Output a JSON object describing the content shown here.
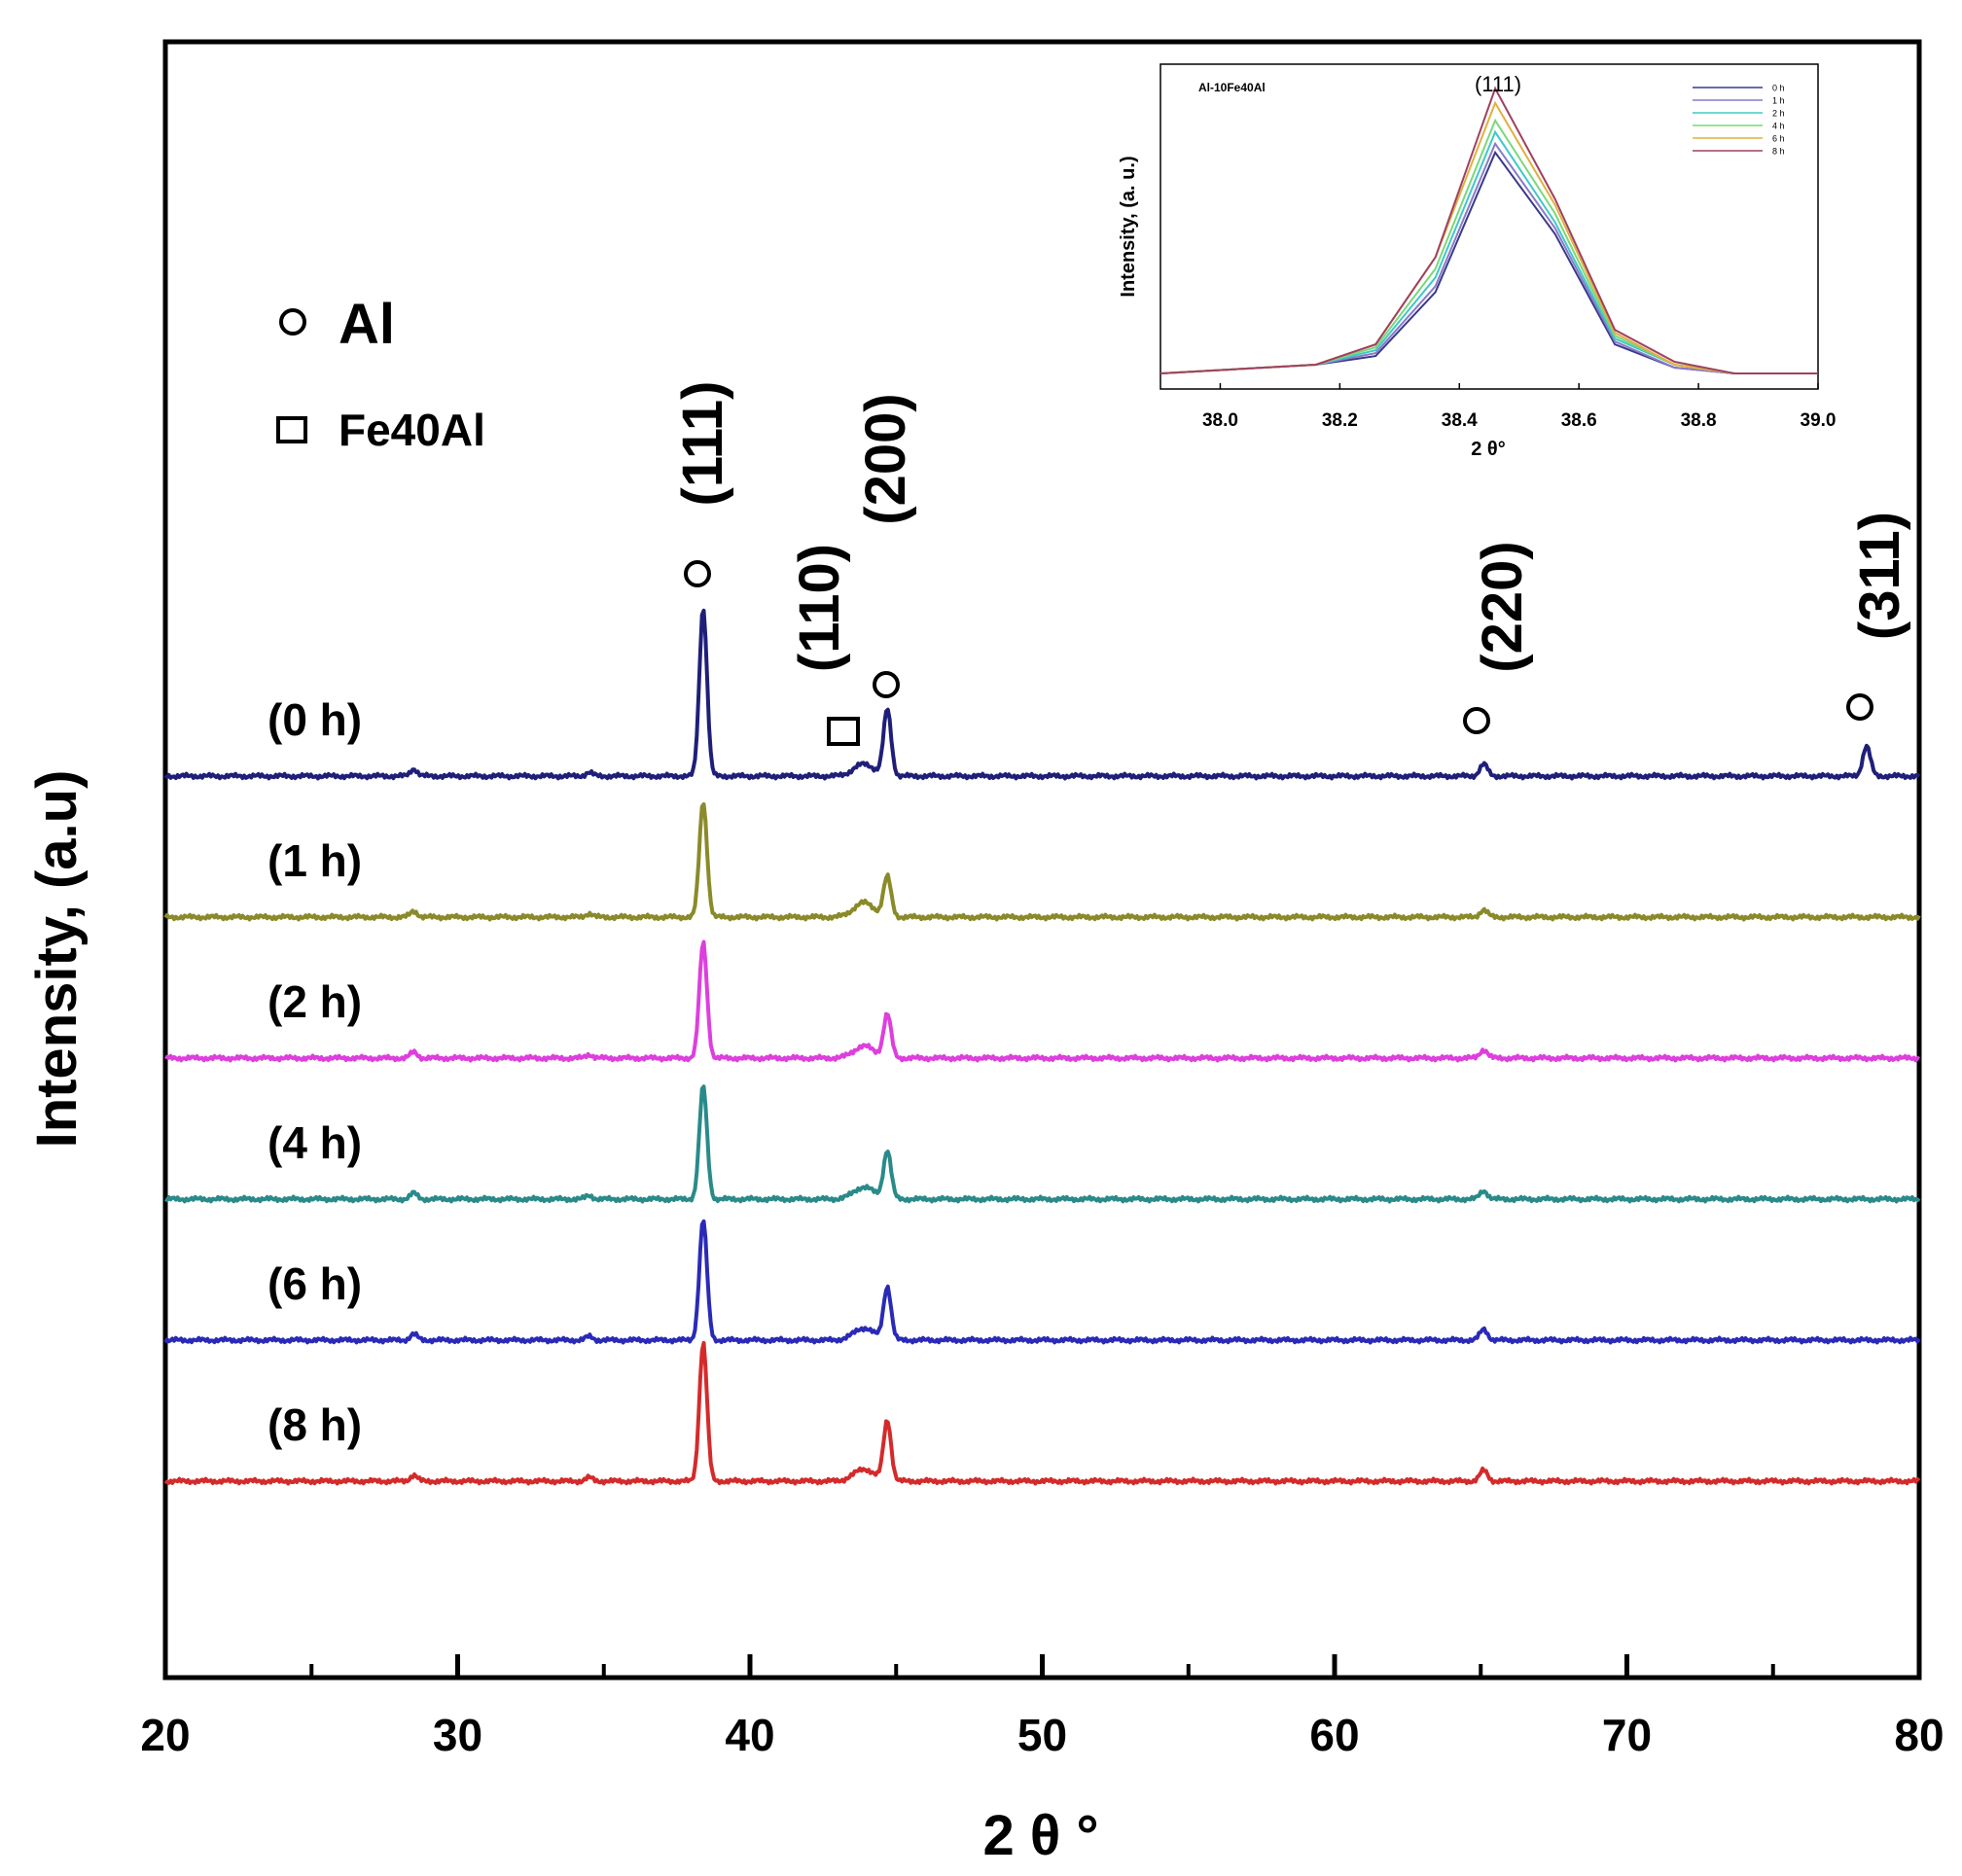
{
  "chart_data": [
    {
      "type": "line",
      "title": "",
      "xlabel": "2 θ °",
      "ylabel": "Intensity, (a.u)",
      "xlim": [
        20,
        80
      ],
      "x_ticks": [
        20,
        30,
        40,
        50,
        60,
        70,
        80
      ],
      "x_minor_ticks": [
        25,
        35,
        45,
        55,
        65,
        75
      ],
      "y_ticks": [],
      "legend": [
        {
          "marker": "circle",
          "label": "Al"
        },
        {
          "marker": "square",
          "label": "Fe40Al"
        }
      ],
      "peak_labels": [
        {
          "label": "(111)",
          "phase": "Al",
          "x": 38.4
        },
        {
          "label": "(110)",
          "phase": "Fe40Al",
          "x": 43.5
        },
        {
          "label": "(200)",
          "phase": "Al",
          "x": 44.7
        },
        {
          "label": "(220)",
          "phase": "Al",
          "x": 65.1
        },
        {
          "label": "(311)",
          "phase": "Al",
          "x": 78.2
        }
      ],
      "series": [
        {
          "name": "(0 h)",
          "color": "#1f1f7a",
          "offset": 0,
          "peaks": [
            {
              "x": 28.5,
              "h": 0.6
            },
            {
              "x": 34.5,
              "h": 0.3
            },
            {
              "x": 38.4,
              "h": 14.0
            },
            {
              "x": 43.9,
              "h": 1.0
            },
            {
              "x": 44.7,
              "h": 5.5
            },
            {
              "x": 65.1,
              "h": 1.0
            },
            {
              "x": 78.2,
              "h": 2.5
            }
          ]
        },
        {
          "name": "(1 h)",
          "color": "#8a8a2a",
          "offset": 1,
          "peaks": [
            {
              "x": 28.5,
              "h": 0.5
            },
            {
              "x": 34.5,
              "h": 0.3
            },
            {
              "x": 38.4,
              "h": 9.6
            },
            {
              "x": 43.9,
              "h": 1.2
            },
            {
              "x": 44.7,
              "h": 3.3
            },
            {
              "x": 65.1,
              "h": 0.6
            },
            {
              "x": 78.2,
              "h": 0.0
            }
          ]
        },
        {
          "name": "(2 h)",
          "color": "#dd3fdd",
          "offset": 2,
          "peaks": [
            {
              "x": 28.5,
              "h": 0.5
            },
            {
              "x": 34.5,
              "h": 0.3
            },
            {
              "x": 38.4,
              "h": 9.6
            },
            {
              "x": 43.9,
              "h": 1.0
            },
            {
              "x": 44.7,
              "h": 3.6
            },
            {
              "x": 65.1,
              "h": 0.7
            },
            {
              "x": 78.2,
              "h": 0.0
            }
          ]
        },
        {
          "name": "(4 h)",
          "color": "#2a8a8a",
          "offset": 3,
          "peaks": [
            {
              "x": 28.5,
              "h": 0.5
            },
            {
              "x": 34.5,
              "h": 0.3
            },
            {
              "x": 38.4,
              "h": 9.4
            },
            {
              "x": 43.9,
              "h": 1.0
            },
            {
              "x": 44.7,
              "h": 4.0
            },
            {
              "x": 65.1,
              "h": 0.7
            },
            {
              "x": 78.2,
              "h": 0.0
            }
          ]
        },
        {
          "name": "(6 h)",
          "color": "#2a2ab8",
          "offset": 4,
          "peaks": [
            {
              "x": 28.5,
              "h": 0.5
            },
            {
              "x": 34.5,
              "h": 0.3
            },
            {
              "x": 38.4,
              "h": 10.0
            },
            {
              "x": 43.9,
              "h": 1.0
            },
            {
              "x": 44.7,
              "h": 4.4
            },
            {
              "x": 65.1,
              "h": 0.9
            },
            {
              "x": 78.2,
              "h": 0.0
            }
          ]
        },
        {
          "name": "(8 h)",
          "color": "#d52a2a",
          "offset": 5,
          "peaks": [
            {
              "x": 28.5,
              "h": 0.5
            },
            {
              "x": 34.5,
              "h": 0.3
            },
            {
              "x": 38.4,
              "h": 11.5
            },
            {
              "x": 43.9,
              "h": 1.0
            },
            {
              "x": 44.7,
              "h": 5.0
            },
            {
              "x": 65.1,
              "h": 0.9
            },
            {
              "x": 78.2,
              "h": 0.0
            }
          ]
        }
      ]
    },
    {
      "type": "line",
      "title": "Al-10Fe40Al",
      "peak_label": "(111)",
      "xlabel": "2 θ°",
      "ylabel": "Intensity, (a. u.)",
      "xlim": [
        37.9,
        39.0
      ],
      "x_ticks": [
        "38.0",
        "38.2",
        "38.4",
        "38.6",
        "38.8",
        "39.0"
      ],
      "x": [
        37.9,
        38.16,
        38.26,
        38.36,
        38.46,
        38.56,
        38.66,
        38.76,
        38.86,
        39.0
      ],
      "series": [
        {
          "name": "0 h",
          "color": "#3a3a8a",
          "values": [
            0.0,
            0.03,
            0.06,
            0.28,
            0.76,
            0.48,
            0.1,
            0.02,
            0.0,
            0.0
          ]
        },
        {
          "name": "1 h",
          "color": "#8a7ac8",
          "values": [
            0.0,
            0.03,
            0.07,
            0.3,
            0.79,
            0.5,
            0.11,
            0.02,
            0.0,
            0.0
          ]
        },
        {
          "name": "2 h",
          "color": "#40c8c8",
          "values": [
            0.0,
            0.03,
            0.08,
            0.33,
            0.83,
            0.52,
            0.12,
            0.03,
            0.0,
            0.0
          ]
        },
        {
          "name": "4 h",
          "color": "#7ad87a",
          "values": [
            0.0,
            0.03,
            0.09,
            0.36,
            0.87,
            0.55,
            0.13,
            0.03,
            0.0,
            0.0
          ]
        },
        {
          "name": "6 h",
          "color": "#e0b040",
          "values": [
            0.0,
            0.03,
            0.1,
            0.4,
            0.93,
            0.58,
            0.14,
            0.03,
            0.0,
            0.0
          ]
        },
        {
          "name": "8 h",
          "color": "#a04060",
          "values": [
            0.0,
            0.03,
            0.1,
            0.4,
            0.98,
            0.6,
            0.15,
            0.04,
            0.0,
            0.0
          ]
        }
      ]
    }
  ]
}
